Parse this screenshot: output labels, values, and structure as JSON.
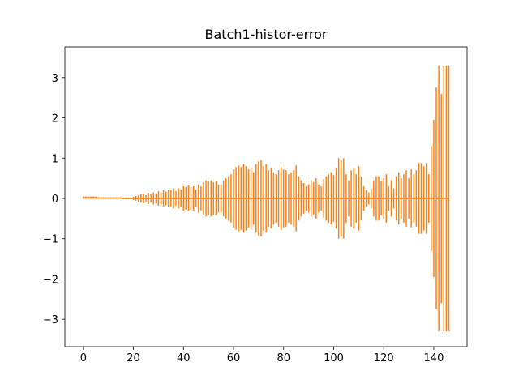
{
  "chart_data": {
    "type": "errorbar",
    "title": "Batch1-histor-error",
    "color": "#ff7f0e",
    "x": [
      0,
      1,
      2,
      3,
      4,
      5,
      6,
      7,
      8,
      9,
      10,
      11,
      12,
      13,
      14,
      15,
      16,
      17,
      18,
      19,
      20,
      21,
      22,
      23,
      24,
      25,
      26,
      27,
      28,
      29,
      30,
      31,
      32,
      33,
      34,
      35,
      36,
      37,
      38,
      39,
      40,
      41,
      42,
      43,
      44,
      45,
      46,
      47,
      48,
      49,
      50,
      51,
      52,
      53,
      54,
      55,
      56,
      57,
      58,
      59,
      60,
      61,
      62,
      63,
      64,
      65,
      66,
      67,
      68,
      69,
      70,
      71,
      72,
      73,
      74,
      75,
      76,
      77,
      78,
      79,
      80,
      81,
      82,
      83,
      84,
      85,
      86,
      87,
      88,
      89,
      90,
      91,
      92,
      93,
      94,
      95,
      96,
      97,
      98,
      99,
      100,
      101,
      102,
      103,
      104,
      105,
      106,
      107,
      108,
      109,
      110,
      111,
      112,
      113,
      114,
      115,
      116,
      117,
      118,
      119,
      120,
      121,
      122,
      123,
      124,
      125,
      126,
      127,
      128,
      129,
      130,
      131,
      132,
      133,
      134,
      135,
      136,
      137,
      138,
      139,
      140,
      141,
      142,
      143,
      144,
      145,
      146
    ],
    "values": [
      0.02,
      0.02,
      0.02,
      0.02,
      0.02,
      0.02,
      0.01,
      0.01,
      0.01,
      0.01,
      0.01,
      0.01,
      0.01,
      0.01,
      0.01,
      0.01,
      0.0,
      0.0,
      0.0,
      0.0,
      0.0,
      0.0,
      0.0,
      0.0,
      0.0,
      0.0,
      0.0,
      0.0,
      0.0,
      0.0,
      0.0,
      0.0,
      0.0,
      0.0,
      0.0,
      0.0,
      0.0,
      0.0,
      0.0,
      0.0,
      0.0,
      0.0,
      0.0,
      0.0,
      0.0,
      0.0,
      0.0,
      0.0,
      0.0,
      0.0,
      0.0,
      0.0,
      0.0,
      0.0,
      0.0,
      0.0,
      0.0,
      0.0,
      0.0,
      0.0,
      0.0,
      0.0,
      0.0,
      0.0,
      0.0,
      0.0,
      0.0,
      0.0,
      0.0,
      0.0,
      0.0,
      0.0,
      0.0,
      0.0,
      0.0,
      0.0,
      0.0,
      0.0,
      0.0,
      0.0,
      0.0,
      0.0,
      0.0,
      0.0,
      0.0,
      0.0,
      0.0,
      0.0,
      0.0,
      0.0,
      0.0,
      0.0,
      0.0,
      0.0,
      0.0,
      0.0,
      0.0,
      0.0,
      0.0,
      0.0,
      0.0,
      0.0,
      0.0,
      0.0,
      0.0,
      0.0,
      0.0,
      0.0,
      0.0,
      0.0,
      0.0,
      0.0,
      0.0,
      0.0,
      0.0,
      0.0,
      0.0,
      0.0,
      0.0,
      0.0,
      0.0,
      0.0,
      0.0,
      0.0,
      0.0,
      0.0,
      0.0,
      0.0,
      0.0,
      0.0,
      0.0,
      0.0,
      0.0,
      0.0,
      0.0,
      0.0,
      0.0,
      0.0,
      0.0,
      0.0,
      0.0,
      0.0,
      0.0,
      0.0,
      0.0,
      0.0,
      0.0
    ],
    "errors": [
      0.03,
      0.03,
      0.03,
      0.03,
      0.03,
      0.03,
      0.02,
      0.02,
      0.02,
      0.02,
      0.02,
      0.02,
      0.02,
      0.02,
      0.02,
      0.02,
      0.02,
      0.02,
      0.02,
      0.02,
      0.04,
      0.06,
      0.08,
      0.1,
      0.12,
      0.08,
      0.14,
      0.1,
      0.15,
      0.12,
      0.18,
      0.15,
      0.2,
      0.17,
      0.22,
      0.2,
      0.25,
      0.18,
      0.25,
      0.22,
      0.3,
      0.28,
      0.32,
      0.28,
      0.3,
      0.22,
      0.35,
      0.3,
      0.4,
      0.45,
      0.42,
      0.45,
      0.4,
      0.42,
      0.35,
      0.35,
      0.45,
      0.5,
      0.55,
      0.6,
      0.72,
      0.78,
      0.82,
      0.78,
      0.85,
      0.8,
      0.72,
      0.78,
      0.65,
      0.85,
      0.92,
      0.95,
      0.8,
      0.85,
      0.7,
      0.75,
      0.65,
      0.6,
      0.7,
      0.78,
      0.72,
      0.7,
      0.6,
      0.65,
      0.7,
      0.82,
      0.55,
      0.45,
      0.38,
      0.3,
      0.35,
      0.45,
      0.4,
      0.5,
      0.35,
      0.3,
      0.48,
      0.55,
      0.6,
      0.65,
      0.58,
      0.75,
      1.0,
      0.95,
      1.0,
      0.6,
      0.45,
      0.7,
      0.75,
      0.6,
      0.8,
      0.55,
      0.3,
      0.2,
      0.15,
      0.25,
      0.45,
      0.55,
      0.55,
      0.42,
      0.5,
      0.6,
      0.3,
      0.45,
      0.25,
      0.55,
      0.65,
      0.5,
      0.6,
      0.7,
      0.5,
      0.72,
      0.6,
      0.7,
      0.88,
      0.88,
      0.8,
      0.88,
      0.6,
      1.3,
      1.95,
      2.75,
      3.3,
      2.6,
      3.3,
      3.3,
      3.3
    ],
    "xlim": [
      -7.4,
      153.3
    ],
    "ylim": [
      -3.68,
      3.76
    ],
    "xticks": [
      0,
      20,
      40,
      60,
      80,
      100,
      120,
      140
    ],
    "yticks": [
      {
        "value": -3,
        "label": "−3"
      },
      {
        "value": -2,
        "label": "−2"
      },
      {
        "value": -1,
        "label": "−1"
      },
      0,
      1,
      2,
      3
    ]
  }
}
